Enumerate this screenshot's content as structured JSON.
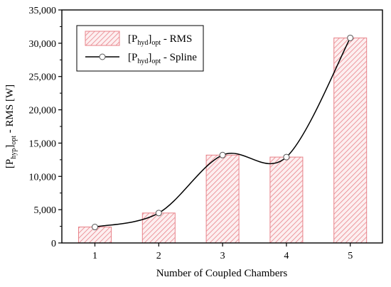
{
  "chart_data": {
    "type": "bar",
    "categories": [
      "1",
      "2",
      "3",
      "4",
      "5"
    ],
    "xlabel": "Number of Coupled Chambers",
    "ylabel": {
      "prefix": "[P",
      "sub1": "hyp",
      "mid": "]",
      "sub2": "opt",
      "suffix": " - RMS [W]"
    },
    "ylim": [
      0,
      35000
    ],
    "yticks": [
      "0",
      "5,000",
      "10,000",
      "15,000",
      "20,000",
      "25,000",
      "30,000",
      "35,000"
    ],
    "grid": false,
    "legend_position": "top-left",
    "series": [
      {
        "name": {
          "prefix": "[P",
          "sub1": "hyd",
          "mid": "]",
          "sub2": "opt",
          "suffix": " - RMS"
        },
        "kind": "bar",
        "values": [
          2400,
          4500,
          13200,
          12900,
          30800
        ]
      },
      {
        "name": {
          "prefix": "[P",
          "sub1": "hyd",
          "mid": "]",
          "sub2": "opt",
          "suffix": " - Spline"
        },
        "kind": "line",
        "values": [
          2400,
          4500,
          13200,
          12900,
          30800
        ]
      }
    ],
    "colors": {
      "bar_hatch": "#e8838a",
      "bar_fill": "#fdeff0",
      "line": "#000000",
      "marker_fill": "#ffffff"
    }
  }
}
